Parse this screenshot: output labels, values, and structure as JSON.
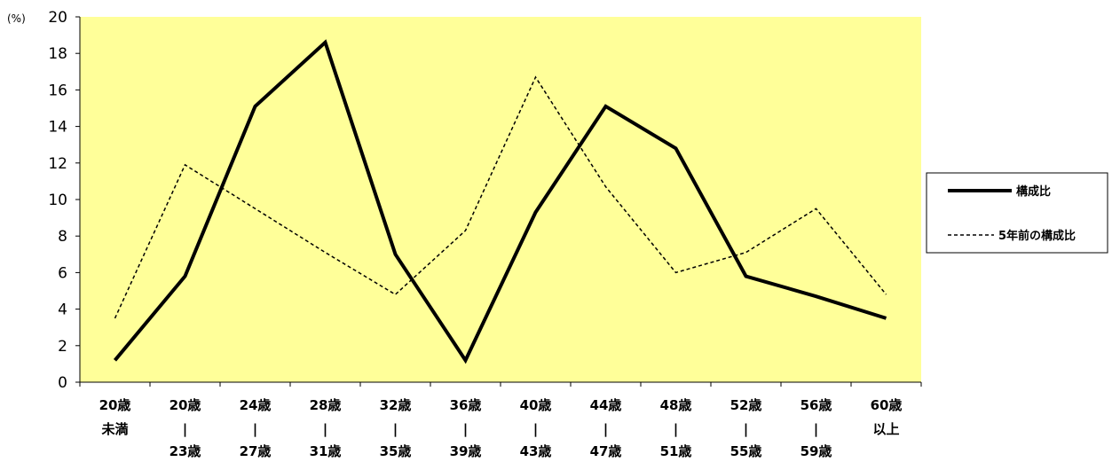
{
  "chart_data": {
    "type": "line",
    "y_unit_label": "(%)",
    "categories": [
      [
        "20歳",
        "未満"
      ],
      [
        "20歳",
        "|",
        "23歳"
      ],
      [
        "24歳",
        "|",
        "27歳"
      ],
      [
        "28歳",
        "|",
        "31歳"
      ],
      [
        "32歳",
        "|",
        "35歳"
      ],
      [
        "36歳",
        "|",
        "39歳"
      ],
      [
        "40歳",
        "|",
        "43歳"
      ],
      [
        "44歳",
        "|",
        "47歳"
      ],
      [
        "48歳",
        "|",
        "51歳"
      ],
      [
        "52歳",
        "|",
        "55歳"
      ],
      [
        "56歳",
        "|",
        "59歳"
      ],
      [
        "60歳",
        "以上"
      ]
    ],
    "series": [
      {
        "name": "構成比",
        "style": "solid",
        "values": [
          1.2,
          5.8,
          15.1,
          18.6,
          7.0,
          1.2,
          9.3,
          15.1,
          12.8,
          5.8,
          4.7,
          3.5
        ]
      },
      {
        "name": "5年前の構成比",
        "style": "dashed",
        "values": [
          3.5,
          11.9,
          9.5,
          7.1,
          4.8,
          8.3,
          16.7,
          10.7,
          6.0,
          7.1,
          9.5,
          4.8
        ]
      }
    ],
    "ylim": [
      0,
      20
    ],
    "yticks": [
      0,
      2,
      4,
      6,
      8,
      10,
      12,
      14,
      16,
      18,
      20
    ],
    "plot_background": "#FFFF99",
    "legend_position": "right"
  }
}
